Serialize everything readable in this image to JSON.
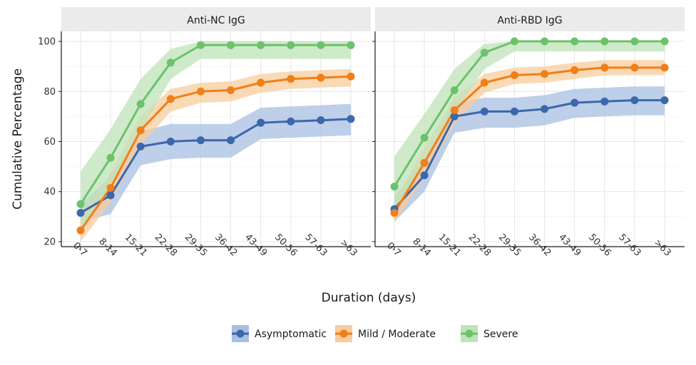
{
  "chart_data": {
    "type": "line",
    "facets": [
      "Anti-NC IgG",
      "Anti-RBD IgG"
    ],
    "x": [
      "0-7",
      "8-14",
      "15-21",
      "22-28",
      "29-35",
      "36-42",
      "43-49",
      "50-56",
      "57-63",
      ">63"
    ],
    "xlabel": "Duration (days)",
    "ylabel": "Cumulative Percentage",
    "ylim": [
      18,
      104
    ],
    "yticks": [
      20,
      40,
      60,
      80,
      100
    ],
    "legend_position": "bottom",
    "grid": true,
    "series_names": [
      "Asymptomatic",
      "Mild / Moderate",
      "Severe"
    ],
    "colors": {
      "Asymptomatic": "#3c67ad",
      "Mild / Moderate": "#f07f18",
      "Severe": "#6cc26a"
    },
    "band_colors": {
      "Asymptomatic": "#a8bfe2",
      "Mild / Moderate": "#f8cc9c",
      "Severe": "#bfe3b8"
    },
    "panels": [
      {
        "facet": "Anti-NC IgG",
        "series": [
          {
            "name": "Asymptomatic",
            "values": [
              31.5,
              38.5,
              58,
              60,
              60.5,
              60.5,
              67.5,
              68,
              68.5,
              69
            ],
            "lower": [
              28,
              31,
              50.5,
              53,
              53.5,
              53.5,
              61,
              61.5,
              62,
              62.5
            ],
            "upper": [
              35,
              46,
              64,
              67,
              67,
              67,
              73.5,
              74,
              74.5,
              75
            ]
          },
          {
            "name": "Mild / Moderate",
            "values": [
              24.5,
              41.5,
              64.5,
              77,
              80,
              80.5,
              83.5,
              85,
              85.5,
              86
            ],
            "lower": [
              20,
              35.5,
              58.5,
              72,
              75.5,
              76,
              79.5,
              81,
              81.5,
              82
            ],
            "upper": [
              29,
              47.5,
              70,
              81,
              83.5,
              84,
              87,
              88,
              88.5,
              89
            ]
          },
          {
            "name": "Severe",
            "values": [
              35,
              53.5,
              75,
              91.5,
              98.5,
              98.5,
              98.5,
              98.5,
              98.5,
              98.5
            ],
            "lower": [
              24,
              42,
              64,
              85,
              93,
              93,
              93,
              93,
              93,
              93
            ],
            "upper": [
              48,
              65,
              85,
              97,
              100,
              100,
              100,
              100,
              100,
              100
            ]
          }
        ]
      },
      {
        "facet": "Anti-RBD IgG",
        "series": [
          {
            "name": "Asymptomatic",
            "values": [
              33,
              46.5,
              70,
              72,
              72,
              73,
              75.5,
              76,
              76.5,
              76.5
            ],
            "lower": [
              28,
              40,
              63.5,
              65.5,
              65.5,
              66.5,
              69.5,
              70,
              70.5,
              70.5
            ],
            "upper": [
              38,
              53,
              75.5,
              77.5,
              77.5,
              78.5,
              81,
              81.5,
              82,
              82
            ]
          },
          {
            "name": "Mild / Moderate",
            "values": [
              31.5,
              51.5,
              72.5,
              83.5,
              86.5,
              87,
              88.5,
              89.5,
              89.5,
              89.5
            ],
            "lower": [
              27.5,
              45.5,
              67,
              79.5,
              83,
              83.5,
              85,
              86.5,
              86.5,
              86.5
            ],
            "upper": [
              36,
              57.5,
              77.5,
              87,
              89.5,
              90,
              91.5,
              92.5,
              92.5,
              92.5
            ]
          },
          {
            "name": "Severe",
            "values": [
              42,
              61.5,
              80.5,
              95.5,
              100,
              100,
              100,
              100,
              100,
              100
            ],
            "lower": [
              31,
              51,
              71,
              89,
              96,
              96,
              96,
              96,
              96,
              96
            ],
            "upper": [
              54,
              71,
              89,
              99,
              100,
              100,
              100,
              100,
              100,
              100
            ]
          }
        ]
      }
    ]
  }
}
